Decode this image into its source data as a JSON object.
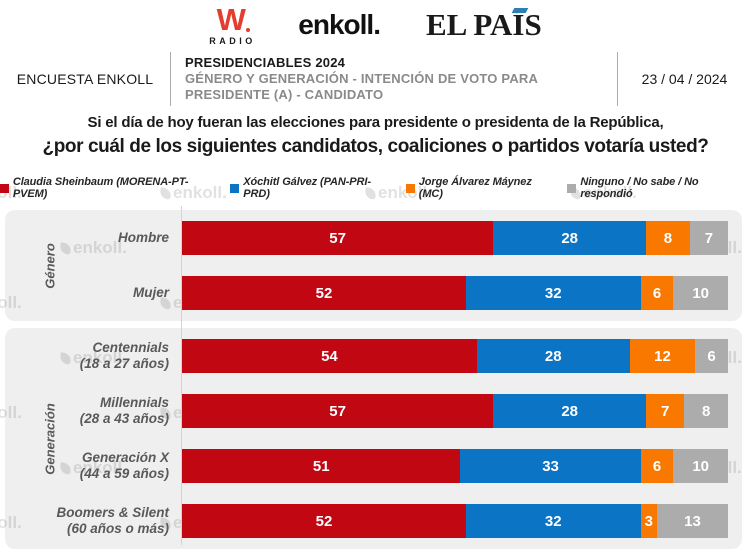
{
  "header": {
    "logos": {
      "wradio_w": "W",
      "wradio_sub": "RADIO",
      "enkoll": "enkoll.",
      "elpais": "EL PAÍS"
    },
    "infobar": {
      "left_label": "ENCUESTA ENKOLL",
      "title": "PRESIDENCIABLES 2024",
      "subtitle_line1": "GÉNERO Y GENERACIÓN - INTENCIÓN DE VOTO PARA",
      "subtitle_line2": "PRESIDENTE (A) - CANDIDATO",
      "date": "23 / 04 / 2024"
    }
  },
  "question": {
    "line1": "Si el día de hoy fueran las elecciones para presidente o presidenta de la República,",
    "line2": "¿por cuál de los siguientes candidatos, coaliciones o partidos votaría usted?"
  },
  "watermark_text": "enkoll.",
  "colors": {
    "sheinbaum_red": "#C00712",
    "galvez_blue": "#0C74C4",
    "maynez_orange": "#F87800",
    "none_gray": "#ACACAC",
    "panel_gray": "#EFEFEF"
  },
  "chart_data": {
    "type": "bar",
    "stacked": true,
    "orientation": "horizontal",
    "unit": "percent",
    "xlim": [
      0,
      100
    ],
    "legend_position": "top",
    "series": [
      {
        "name": "Claudia Sheinbaum (MORENA-PT-PVEM)",
        "color": "#C00712"
      },
      {
        "name": "Xóchitl Gálvez (PAN-PRI-PRD)",
        "color": "#0C74C4"
      },
      {
        "name": "Jorge Álvarez Máynez (MC)",
        "color": "#F87800"
      },
      {
        "name": "Ninguno / No sabe / No respondió",
        "color": "#ACACAC"
      }
    ],
    "groups": [
      {
        "label": "Género",
        "rows": [
          {
            "category": "Hombre",
            "sublabel": "",
            "values": [
              57,
              28,
              8,
              7
            ]
          },
          {
            "category": "Mujer",
            "sublabel": "",
            "values": [
              52,
              32,
              6,
              10
            ]
          }
        ]
      },
      {
        "label": "Generación",
        "rows": [
          {
            "category": "Centennials",
            "sublabel": "(18 a 27 años)",
            "values": [
              54,
              28,
              12,
              6
            ]
          },
          {
            "category": "Millennials",
            "sublabel": "(28 a 43 años)",
            "values": [
              57,
              28,
              7,
              8
            ]
          },
          {
            "category": "Generación X",
            "sublabel": "(44 a 59 años)",
            "values": [
              51,
              33,
              6,
              10
            ]
          },
          {
            "category": "Boomers & Silent",
            "sublabel": "(60 años o más)",
            "values": [
              52,
              32,
              3,
              13
            ]
          }
        ]
      }
    ]
  }
}
